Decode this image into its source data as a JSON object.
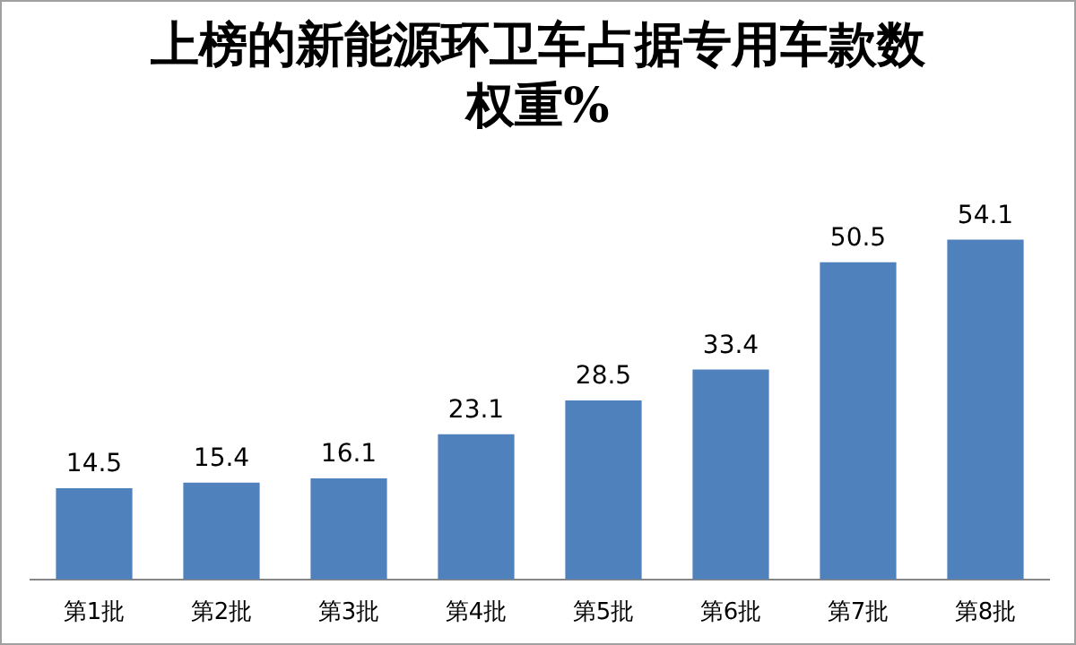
{
  "chart_data": {
    "type": "bar",
    "title": "上榜的新能源环卫车占据专用车款数权重%",
    "categories": [
      "第1批",
      "第2批",
      "第3批",
      "第4批",
      "第5批",
      "第6批",
      "第7批",
      "第8批"
    ],
    "values": [
      14.5,
      15.4,
      16.1,
      23.1,
      28.5,
      33.4,
      50.5,
      54.1
    ],
    "color": "#4f81bd",
    "data_labels": true
  }
}
